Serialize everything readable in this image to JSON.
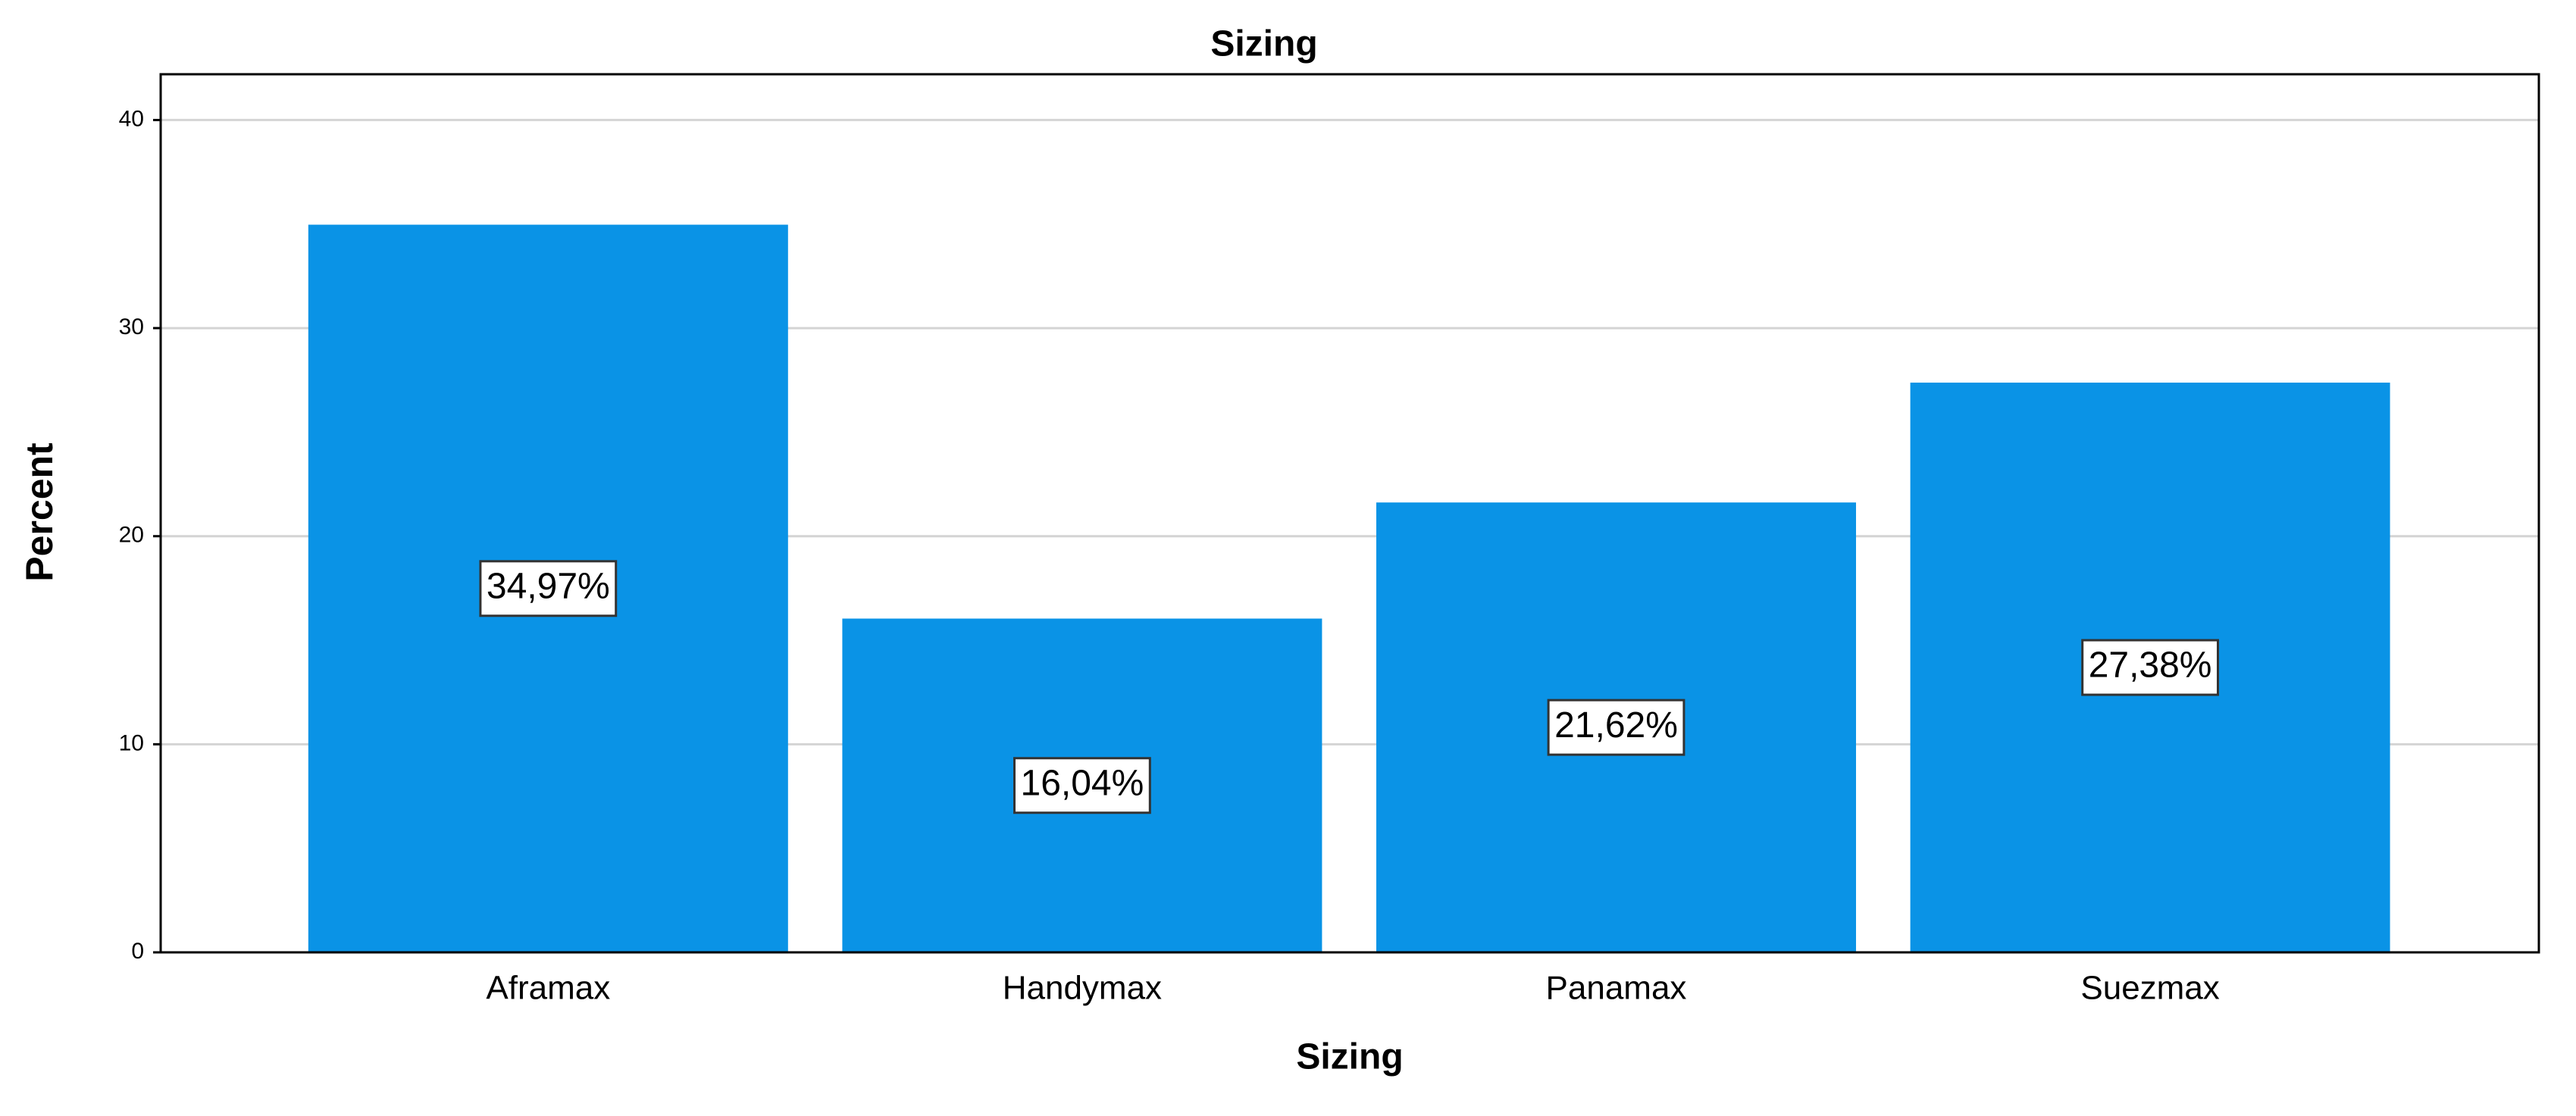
{
  "chart_data": {
    "type": "bar",
    "title": "Sizing",
    "x_label": "Sizing",
    "y_label": "Percent",
    "categories": [
      "Aframax",
      "Handymax",
      "Panamax",
      "Suezmax"
    ],
    "values": [
      34.97,
      16.04,
      21.62,
      27.38
    ],
    "value_labels": [
      "34,97%",
      "16,04%",
      "21,62%",
      "27,38%"
    ],
    "color": "#0a93e6",
    "ylim": [
      0,
      42.2
    ],
    "yticks": [
      0,
      10,
      20,
      30,
      40
    ],
    "grid": true
  }
}
